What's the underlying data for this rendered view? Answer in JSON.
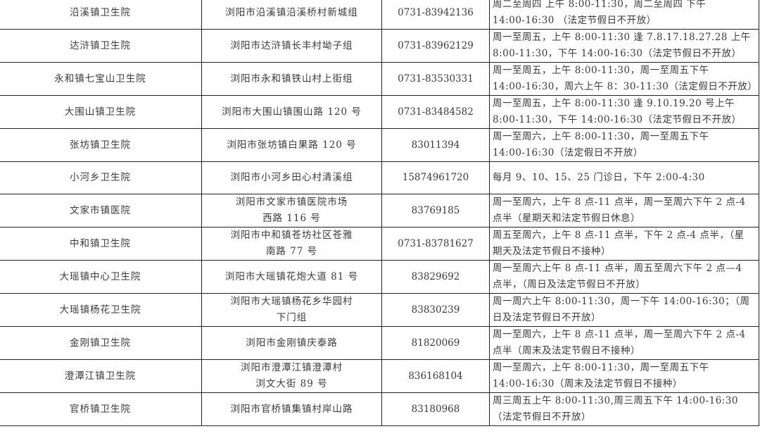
{
  "rows": [
    {
      "name": "沿溪镇卫生院",
      "address": "浏阳市沿溪镇沿溪桥村新城组",
      "phone": "0731-83942136",
      "hours": "周二至周四 上午 8:00-11:30，周二至周四 下午\n14:00-16:30  （法定节假日不开放）"
    },
    {
      "name": "达浒镇卫生院",
      "address": "浏阳市达浒镇长丰村坳子组",
      "phone": "0731-83962129",
      "hours": "周一至周五，上午 8:00-11:30 逢 7.8.17.18.27.28 上午\n8:00-11:30，下午 14:00-16:30（法定节假日不开放）"
    },
    {
      "name": "永和镇七宝山卫生院",
      "address": "浏阳市永和镇铁山村上街组",
      "phone": "0731-83530331",
      "hours": "周一至周五，上午 8:00-11:30，周一至周五下午\n14:00-16:30，周六上午 8：30-11:30（法定假日不开放）"
    },
    {
      "name": "大围山镇卫生院",
      "address": "浏阳市大围山镇围山路 120 号",
      "phone": "0731-83484582",
      "hours": "周一至周五，上午 8:00-11:30 逢 9.10.19.20 号上午\n8:00-11:30，下午 14:00-16:30（法定节假日不开放）"
    },
    {
      "name": "张坊镇卫生院",
      "address": "浏阳市张坊镇白果路 120 号",
      "phone": "83011394",
      "hours": "周一至周六，上午 8:00-11:30，周一至周五下午\n14:00-16:30（法定假日不开放）"
    },
    {
      "name": "小河乡卫生院",
      "address": "浏阳市小河乡田心村清溪组",
      "phone": "15874961720",
      "hours": "每月 9、10、15、25 门诊日，下午 2:00-4:30"
    },
    {
      "name": "文家市镇医院",
      "address": "浏阳市文家市镇医院市场\n西路 116 号",
      "phone": "83769185",
      "hours": "周一至周六，上午 8 点-11 点半，周一至周六下午 2 点-4\n点半（星期天和法定节假日休息）"
    },
    {
      "name": "中和镇卫生院",
      "address": "浏阳市中和镇苍坊社区苍雅\n南路 77 号",
      "phone": "0731-83781627",
      "hours": "周五至周六，上午 8 点-11 点半，下午 2 点-4 点半，（星\n期天及法定节假日不接种）"
    },
    {
      "name": "大瑶镇中心卫生院",
      "address": "浏阳市大瑶镇花炮大道 81 号",
      "phone": "83829692",
      "hours": "周一至周六上午 8 点-11 点半，周五至周六下午 2 点—4\n点半，（周日及法定节假日不开放）"
    },
    {
      "name": "大瑶镇杨花卫生院",
      "address": "浏阳市大瑶镇杨花乡华园村\n下门组",
      "phone": "83830239",
      "hours": "周一周六上午 8:00-11:30，周一下午 14:00-16:30；（周\n日及法定节假日不开放）"
    },
    {
      "name": "金刚镇卫生院",
      "address": "浏阳市金刚镇庆泰路",
      "phone": "81820069",
      "hours": "周一至周六，上午 8 点-11 点半，周一至周六下午 2 点-4\n点半（周末及法定节假日不接种）"
    },
    {
      "name": "澄潭江镇卫生院",
      "address": "浏阳市澄潭江镇澄潭村\n浏文大街 89 号",
      "phone": "836168104",
      "hours": "周一至周六，上午 8:00-11:30，周一至周五下午\n14:00-16:30（周末及法定节假日不接种）"
    },
    {
      "name": "官桥镇卫生院",
      "address": "浏阳市官桥镇集镇村岸山路",
      "phone": "83180968",
      "hours": "周三周五上午 8:00-11:30,周三周五下午 14:00-16:30\n（法定节假日不开放）"
    }
  ]
}
